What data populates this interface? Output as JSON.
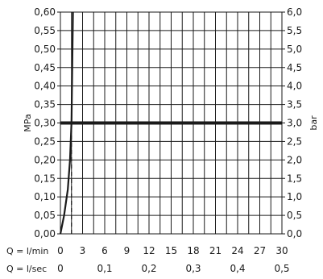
{
  "chart_data": {
    "type": "line",
    "y_left": {
      "label": "MPa",
      "min": 0,
      "max": 0.6,
      "step": 0.05,
      "tick_labels": [
        "0,00",
        "0,05",
        "0,10",
        "0,15",
        "0,20",
        "0,25",
        "0,30",
        "0,35",
        "0,40",
        "0,45",
        "0,50",
        "0,55",
        "0,60"
      ]
    },
    "y_right": {
      "label": "bar",
      "min": 0,
      "max": 6,
      "step": 0.5,
      "tick_labels": [
        "0,0",
        "0,5",
        "1,0",
        "1,5",
        "2,0",
        "2,5",
        "3,0",
        "3,5",
        "4,0",
        "4,5",
        "5,0",
        "5,5",
        "6,0"
      ]
    },
    "x_lmin": {
      "label": "Q = l/min",
      "min": 0,
      "max": 30,
      "tick_values": [
        0,
        3,
        6,
        9,
        12,
        15,
        18,
        21,
        24,
        27,
        30
      ],
      "tick_labels": [
        "0",
        "3",
        "6",
        "9",
        "12",
        "15",
        "18",
        "21",
        "24",
        "27",
        "30"
      ]
    },
    "x_lsec": {
      "label": "Q = l/sec",
      "tick_values": [
        0,
        0.1,
        0.2,
        0.3,
        0.4,
        0.5
      ],
      "tick_labels": [
        "0",
        "0,1",
        "0,2",
        "0,3",
        "0,4",
        "0,5"
      ]
    },
    "grid": true,
    "series": [
      {
        "style": "solid",
        "points": [
          [
            0,
            0
          ],
          [
            0.5,
            0.05
          ],
          [
            1.0,
            0.12
          ],
          [
            1.3,
            0.2
          ],
          [
            1.5,
            0.3
          ],
          [
            1.6,
            0.45
          ],
          [
            1.7,
            0.6
          ]
        ]
      },
      {
        "style": "dashed",
        "points": [
          [
            1.5,
            0
          ],
          [
            1.5,
            0.3
          ]
        ]
      },
      {
        "style": "thick-horizontal",
        "points": [
          [
            0,
            0.3
          ],
          [
            30,
            0.3
          ]
        ]
      }
    ]
  }
}
